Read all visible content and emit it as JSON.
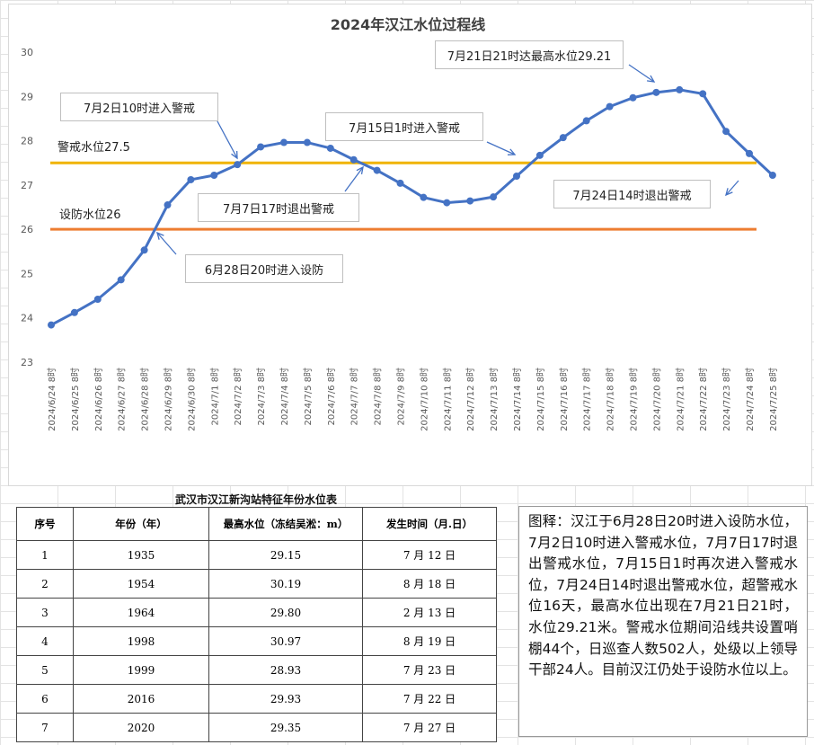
{
  "chart_data": {
    "type": "line",
    "title": "2024年汉江水位过程线",
    "categories": [
      "2024/6/24 8时",
      "2024/6/25 8时",
      "2024/6/26 8时",
      "2024/6/27 8时",
      "2024/6/28 8时",
      "2024/6/29 8时",
      "2024/6/30 8时",
      "2024/7/1 8时",
      "2024/7/2 8时",
      "2024/7/3 8时",
      "2024/7/4 8时",
      "2024/7/5 8时",
      "2024/7/6 8时",
      "2024/7/7 8时",
      "2024/7/8 8时",
      "2024/7/9 8时",
      "2024/7/10 8时",
      "2024/7/11 8时",
      "2024/7/12 8时",
      "2024/7/13 8时",
      "2024/7/14 8时",
      "2024/7/15 8时",
      "2024/7/16 8时",
      "2024/7/17 8时",
      "2024/7/18 8时",
      "2024/7/19 8时",
      "2024/7/20 8时",
      "2024/7/21 8时",
      "2024/7/22 8时",
      "2024/7/23 8时",
      "2024/7/24 8时",
      "2024/7/25 8时"
    ],
    "values": [
      23.84,
      24.12,
      24.42,
      24.86,
      25.53,
      26.55,
      27.12,
      27.22,
      27.46,
      27.86,
      27.96,
      27.96,
      27.83,
      27.57,
      27.33,
      27.04,
      26.72,
      26.6,
      26.64,
      26.73,
      27.2,
      27.67,
      28.07,
      28.45,
      28.77,
      28.97,
      29.09,
      29.15,
      29.06,
      28.21,
      27.71,
      27.22
    ],
    "ylim": [
      23,
      30
    ],
    "yticks": [
      23,
      24,
      25,
      26,
      27,
      28,
      29,
      30
    ],
    "grid": false,
    "series_color": "#4472c4",
    "reference_lines": [
      {
        "label": "警戒水位27.5",
        "value": 27.5,
        "color": "#f0b400"
      },
      {
        "label": "设防水位26",
        "value": 26,
        "color": "#ed7d31"
      }
    ],
    "annotations": [
      {
        "id": "a1",
        "text": "7月2日10时进入警戒"
      },
      {
        "id": "a2",
        "text": "7月7日17时退出警戒"
      },
      {
        "id": "a3",
        "text": "6月28日20时进入设防"
      },
      {
        "id": "a4",
        "text": "7月15日1时进入警戒"
      },
      {
        "id": "a5",
        "text": "7月21日21时达最高水位29.21"
      },
      {
        "id": "a6",
        "text": "7月24日14时退出警戒"
      }
    ]
  },
  "table": {
    "title": "武汉市汉江新沟站特征年份水位表",
    "headers": [
      "序号",
      "年份（年）",
      "最高水位（冻结吴淞：m）",
      "发生时间（月.日）"
    ],
    "rows": [
      [
        "1",
        "1935",
        "29.15",
        "7 月 12 日"
      ],
      [
        "2",
        "1954",
        "30.19",
        "8 月 18 日"
      ],
      [
        "3",
        "1964",
        "29.80",
        "2 月 13 日"
      ],
      [
        "4",
        "1998",
        "30.97",
        "8 月 19 日"
      ],
      [
        "5",
        "1999",
        "28.93",
        "7 月 23 日"
      ],
      [
        "6",
        "2016",
        "29.93",
        "7 月 22 日"
      ],
      [
        "7",
        "2020",
        "29.35",
        "7 月 27 日"
      ]
    ]
  },
  "note": "图释：汉江于6月28日20时进入设防水位，7月2日10时进入警戒水位，7月7日17时退出警戒水位，7月15日1时再次进入警戒水位，7月24日14时退出警戒水位，超警戒水位16天，最高水位出现在7月21日21时，水位29.21米。警戒水位期间沿线共设置哨棚44个，日巡查人数502人，处级以上领导干部24人。目前汉江仍处于设防水位以上。"
}
